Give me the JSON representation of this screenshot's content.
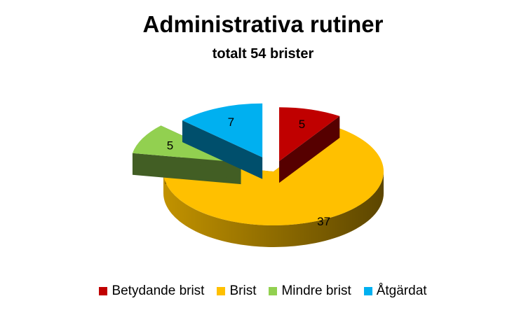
{
  "chart_data": {
    "type": "pie",
    "title": "Administrativa rutiner",
    "subtitle": "totalt 54 brister",
    "slices": [
      {
        "label": "Betydande brist",
        "value": 5,
        "color": "#C00000"
      },
      {
        "label": "Brist",
        "value": 37,
        "color": "#FFC000"
      },
      {
        "label": "Mindre brist",
        "value": 5,
        "color": "#92D050"
      },
      {
        "label": "Åtgärdat",
        "value": 7,
        "color": "#00B0F0"
      }
    ],
    "legend_position": "bottom",
    "exploded": true,
    "style": "3d"
  }
}
